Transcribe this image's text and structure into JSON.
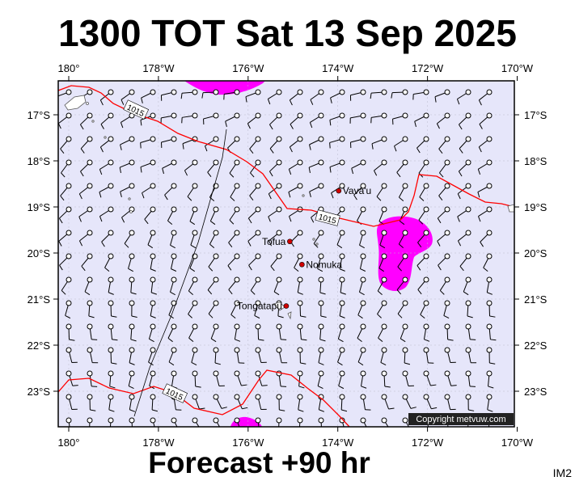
{
  "title": "1300 TOT Sat 13 Sep 2025",
  "subtitle": "Forecast +90 hr",
  "model_tag": "IM2",
  "copyright": "Copyright metvuw.com",
  "isobar_label": "1015",
  "colors": {
    "ocean": "#e6e6fa",
    "isobar": "#ff0000",
    "precip": "#ff00ff",
    "wind": "#000000",
    "copyright_bg": "#222222"
  },
  "lon_labels": [
    "180°",
    "178°W",
    "176°W",
    "174°W",
    "172°W",
    "170°W"
  ],
  "lat_labels": [
    "17°S",
    "18°S",
    "19°S",
    "20°S",
    "21°S",
    "22°S",
    "23°S"
  ],
  "places": [
    {
      "name": "Vava'u",
      "lon": -173.98,
      "lat": -18.65
    },
    {
      "name": "Tofua",
      "lon": -175.07,
      "lat": -19.75
    },
    {
      "name": "Nomuka",
      "lon": -174.8,
      "lat": -20.25
    },
    {
      "name": "Tongatapu",
      "lon": -175.15,
      "lat": -21.15
    }
  ]
}
